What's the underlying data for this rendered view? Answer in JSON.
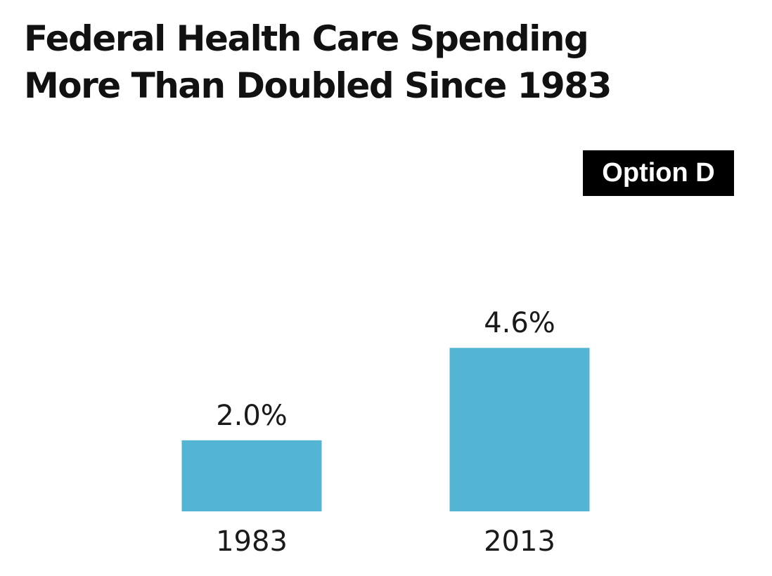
{
  "chart_data": {
    "type": "bar",
    "title": "Federal Health Care Spending More Than Doubled Since 1983",
    "title_lines": [
      "Federal Health Care Spending",
      "More Than Doubled Since 1983"
    ],
    "categories": [
      "1983",
      "2013"
    ],
    "values": [
      2.0,
      4.6
    ],
    "data_labels": [
      "2.0%",
      "4.6%"
    ],
    "xlabel": "",
    "ylabel": "",
    "ylim": [
      0,
      4.6
    ],
    "grid": false,
    "bar_color": "#53b4d4"
  },
  "badge": {
    "label": "Option D"
  }
}
